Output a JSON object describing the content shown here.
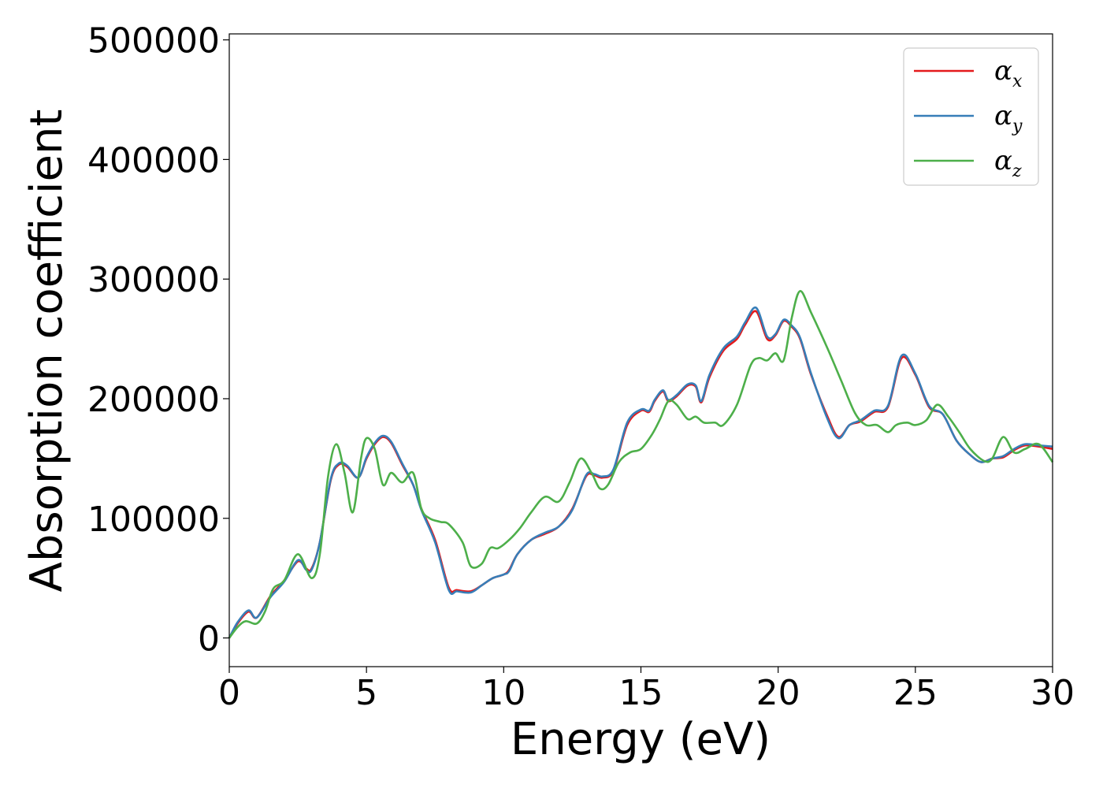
{
  "chart_data": {
    "type": "line",
    "xlabel": "Energy (eV)",
    "ylabel": "Absorption coefficient",
    "xlim": [
      0,
      30
    ],
    "ylim": [
      -24000,
      505000
    ],
    "xticks": [
      "0",
      "5",
      "10",
      "15",
      "20",
      "25",
      "30"
    ],
    "yticks": [
      "0",
      "100000",
      "200000",
      "300000",
      "400000",
      "500000"
    ],
    "grid": false,
    "legend_position": "top-right",
    "series": [
      {
        "name": "αx",
        "legend_base": "α",
        "legend_sub": "x",
        "color": "#e41a1c",
        "x": [
          0,
          0.3,
          0.7,
          1.0,
          1.5,
          2.0,
          2.5,
          2.8,
          3.0,
          3.3,
          3.7,
          4.0,
          4.3,
          4.7,
          5.0,
          5.3,
          5.6,
          5.9,
          6.3,
          6.7,
          7.0,
          7.5,
          8.0,
          8.3,
          8.8,
          9.2,
          9.6,
          10.0,
          10.2,
          10.5,
          11.0,
          11.5,
          12.0,
          12.5,
          13.0,
          13.3,
          13.6,
          14.0,
          14.5,
          15.0,
          15.3,
          15.5,
          15.8,
          16.0,
          16.3,
          16.7,
          17.0,
          17.2,
          17.5,
          18.0,
          18.5,
          18.8,
          19.2,
          19.6,
          19.9,
          20.2,
          20.5,
          20.8,
          21.2,
          21.8,
          22.2,
          22.6,
          23.0,
          23.5,
          24.0,
          24.5,
          25.0,
          25.5,
          26.0,
          26.5,
          27.0,
          27.4,
          27.8,
          28.2,
          28.6,
          29.0,
          29.5,
          30.0
        ],
        "y": [
          0,
          12000,
          22000,
          17000,
          35000,
          48000,
          64000,
          58000,
          58000,
          80000,
          132000,
          145000,
          143000,
          134000,
          150000,
          162000,
          168000,
          163000,
          145000,
          128000,
          108000,
          82000,
          42000,
          40000,
          39000,
          44000,
          50000,
          53000,
          57000,
          70000,
          82000,
          87000,
          93000,
          108000,
          135000,
          136000,
          134000,
          140000,
          178000,
          190000,
          189000,
          198000,
          206000,
          198000,
          202000,
          211000,
          210000,
          197000,
          218000,
          240000,
          250000,
          262000,
          273000,
          250000,
          253000,
          265000,
          260000,
          250000,
          220000,
          185000,
          168000,
          178000,
          181000,
          189000,
          193000,
          234000,
          220000,
          193000,
          187000,
          165000,
          153000,
          147000,
          150000,
          151000,
          157000,
          161000,
          160000,
          158000
        ]
      },
      {
        "name": "αy",
        "legend_base": "α",
        "legend_sub": "y",
        "color": "#377eb8",
        "x": [
          0,
          0.3,
          0.7,
          1.0,
          1.5,
          2.0,
          2.5,
          2.8,
          3.0,
          3.3,
          3.7,
          4.0,
          4.3,
          4.7,
          5.0,
          5.3,
          5.6,
          5.9,
          6.3,
          6.7,
          7.0,
          7.5,
          8.0,
          8.3,
          8.8,
          9.2,
          9.6,
          10.0,
          10.2,
          10.5,
          11.0,
          11.5,
          12.0,
          12.5,
          13.0,
          13.3,
          13.6,
          14.0,
          14.5,
          15.0,
          15.3,
          15.5,
          15.8,
          16.0,
          16.3,
          16.7,
          17.0,
          17.2,
          17.5,
          18.0,
          18.5,
          18.8,
          19.2,
          19.6,
          19.9,
          20.2,
          20.5,
          20.8,
          21.2,
          21.8,
          22.2,
          22.6,
          23.0,
          23.5,
          24.0,
          24.5,
          25.0,
          25.5,
          26.0,
          26.5,
          27.0,
          27.4,
          27.8,
          28.2,
          28.6,
          29.0,
          29.5,
          30.0
        ],
        "y": [
          0,
          13000,
          23000,
          17000,
          34000,
          47000,
          65000,
          57000,
          57000,
          80000,
          133000,
          146000,
          144000,
          134000,
          151000,
          163000,
          169000,
          164000,
          146000,
          128000,
          107000,
          80000,
          40000,
          39000,
          38000,
          44000,
          50000,
          53000,
          56000,
          70000,
          82000,
          88000,
          93000,
          107000,
          136000,
          137000,
          135000,
          141000,
          180000,
          191000,
          190000,
          199000,
          207000,
          199000,
          203000,
          212000,
          211000,
          198000,
          220000,
          242000,
          252000,
          264000,
          276000,
          252000,
          254000,
          266000,
          261000,
          251000,
          221000,
          183000,
          167000,
          178000,
          182000,
          190000,
          194000,
          236000,
          221000,
          194000,
          187000,
          165000,
          153000,
          147000,
          150000,
          152000,
          158000,
          162000,
          161000,
          160000
        ]
      },
      {
        "name": "αz",
        "legend_base": "α",
        "legend_sub": "z",
        "color": "#4daf4a",
        "x": [
          0,
          0.3,
          0.6,
          1.0,
          1.3,
          1.6,
          2.0,
          2.5,
          3.0,
          3.3,
          3.6,
          3.9,
          4.2,
          4.5,
          4.8,
          5.0,
          5.3,
          5.6,
          5.9,
          6.3,
          6.7,
          7.0,
          7.3,
          7.7,
          8.0,
          8.5,
          8.8,
          9.2,
          9.5,
          9.8,
          10.2,
          10.6,
          11.0,
          11.5,
          12.0,
          12.4,
          12.8,
          13.2,
          13.5,
          13.8,
          14.2,
          14.6,
          15.0,
          15.4,
          15.7,
          16.0,
          16.3,
          16.7,
          17.0,
          17.3,
          17.7,
          18.0,
          18.5,
          19.0,
          19.3,
          19.6,
          19.9,
          20.2,
          20.5,
          20.8,
          21.2,
          21.8,
          22.3,
          22.8,
          23.2,
          23.6,
          24.0,
          24.3,
          24.7,
          25.0,
          25.4,
          25.8,
          26.2,
          26.6,
          27.0,
          27.5,
          27.8,
          28.2,
          28.6,
          29.0,
          29.5,
          30.0
        ],
        "y": [
          0,
          9000,
          14000,
          12000,
          22000,
          41000,
          48000,
          70000,
          50000,
          70000,
          135000,
          162000,
          138000,
          105000,
          150000,
          167000,
          158000,
          128000,
          138000,
          130000,
          138000,
          108000,
          100000,
          97000,
          95000,
          80000,
          60000,
          62000,
          75000,
          75000,
          82000,
          92000,
          105000,
          118000,
          114000,
          130000,
          150000,
          138000,
          125000,
          128000,
          147000,
          155000,
          158000,
          170000,
          183000,
          198000,
          195000,
          183000,
          185000,
          180000,
          180000,
          178000,
          195000,
          228000,
          234000,
          232000,
          238000,
          232000,
          268000,
          290000,
          272000,
          242000,
          215000,
          188000,
          178000,
          178000,
          172000,
          178000,
          180000,
          178000,
          182000,
          195000,
          185000,
          172000,
          158000,
          148000,
          150000,
          168000,
          155000,
          158000,
          162000,
          147000
        ]
      }
    ]
  }
}
